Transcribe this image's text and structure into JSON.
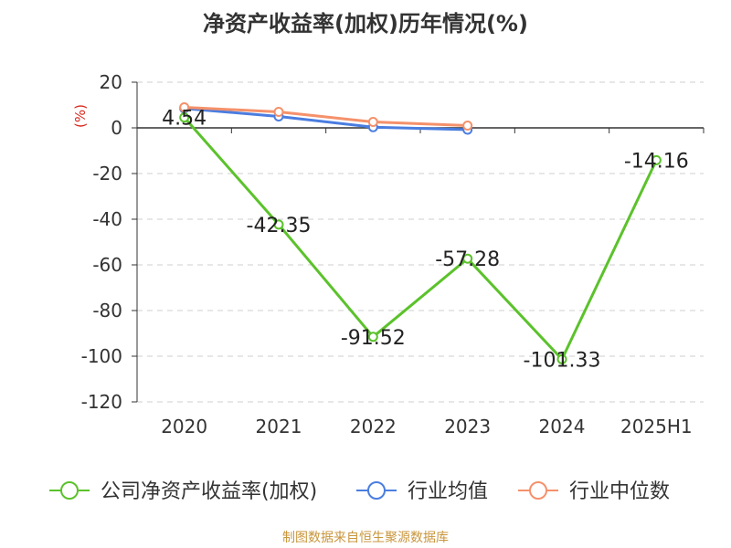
{
  "chart_data": {
    "type": "line",
    "title": "净资产收益率(加权)历年情况(%)",
    "ylabel": "(%)",
    "ylim": [
      -120,
      20
    ],
    "yticks": [
      "20",
      "0",
      "-20",
      "-40",
      "-60",
      "-80",
      "-100",
      "-120"
    ],
    "categories": [
      "2020",
      "2021",
      "2022",
      "2023",
      "2024",
      "2025H1"
    ],
    "grid": true,
    "legend_position": "bottom",
    "series": [
      {
        "name": "公司净资产收益率(加权)",
        "color": "#5bc22b",
        "values": [
          4.54,
          -42.35,
          -91.52,
          -57.28,
          -101.33,
          -14.16
        ],
        "labels": [
          "4.54",
          "-42.35",
          "-91.52",
          "-57.28",
          "-101.33",
          "-14.16"
        ]
      },
      {
        "name": "行业均值",
        "color": "#4a7de0",
        "values": [
          8.5,
          5.0,
          0.3,
          -0.8,
          null,
          null
        ]
      },
      {
        "name": "行业中位数",
        "color": "#f5916b",
        "values": [
          9.0,
          7.0,
          2.6,
          1.0,
          null,
          null
        ]
      }
    ]
  },
  "source_text": "制图数据来自恒生聚源数据库"
}
